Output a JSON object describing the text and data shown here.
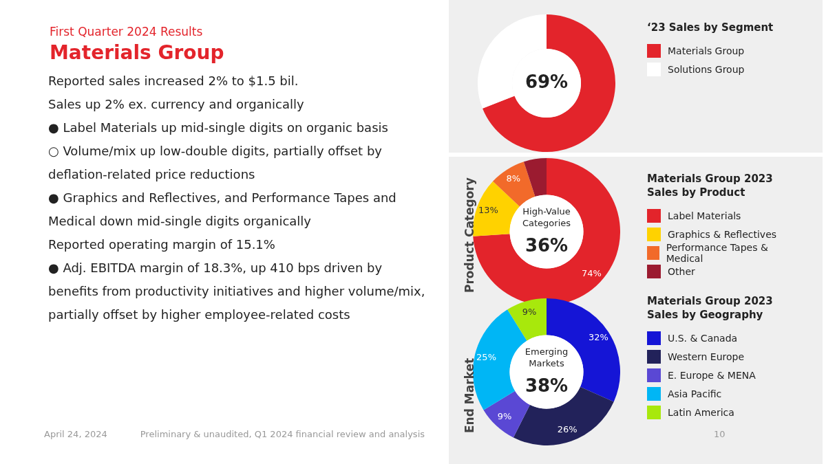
{
  "chart_data": [
    {
      "type": "other",
      "subtitle": "First Quarter 2024 Results",
      "title": "Materials Group",
      "annotations": [
        "Reported sales increased 2% to $1.5 bil.",
        "Sales up 2% ex. currency and organically",
        "●   Label Materials up mid-single digits on organic basis",
        "○   Volume/mix up low-double digits, partially offset by deflation-related price reductions",
        "●   Graphics and Reflectives, and Performance Tapes and Medical down mid-single digits organically",
        "Reported operating margin of 15.1%",
        "●   Adj. EBITDA margin of 18.3%, up 410 bps driven by benefits from productivity initiatives and higher volume/mix, partially offset by higher employee-related costs"
      ]
    },
    {
      "type": "donut",
      "title": "‘23 Sales by Segment",
      "categories": [
        "Materials Group",
        "Solutions Group"
      ],
      "values": [
        69,
        31
      ],
      "colors": [
        "#e3242b",
        "#ffffff"
      ],
      "legend": "right",
      "annotations": [
        "69%"
      ]
    },
    {
      "type": "donut",
      "title": "Materials Group 2023 Sales by Product",
      "ylabel": "Product Category",
      "categories": [
        "Label Materials",
        "Graphics & Reflectives",
        "Performance Tapes & Medical",
        "Other"
      ],
      "values": [
        74,
        13,
        8,
        5
      ],
      "colors": [
        "#e3242b",
        "#ffd200",
        "#f26a2a",
        "#9b1b30"
      ],
      "value_labels": [
        "74%",
        "13%",
        "8%",
        null
      ],
      "legend": "right",
      "annotations": [
        "High-Value Categories",
        "36%"
      ]
    },
    {
      "type": "donut",
      "title": "Materials Group 2023 Sales by Geography",
      "ylabel": "End Market",
      "categories": [
        "U.S. & Canada",
        "Western Europe",
        "E. Europe & MENA",
        "Asia Pacific",
        "Latin America"
      ],
      "values": [
        32,
        26,
        9,
        25,
        9
      ],
      "colors": [
        "#1515d6",
        "#22225a",
        "#5a48d4",
        "#00b6f5",
        "#a8e80c"
      ],
      "value_labels": [
        "32%",
        "26%",
        "9%",
        "25%",
        "9%"
      ],
      "legend": "right",
      "annotations": [
        "Emerging Markets",
        "38%"
      ]
    },
    {
      "type": "other",
      "annotations": [
        "April 24, 2024",
        "Preliminary & unaudited, Q1 2024 financial review and analysis",
        "10"
      ]
    }
  ]
}
